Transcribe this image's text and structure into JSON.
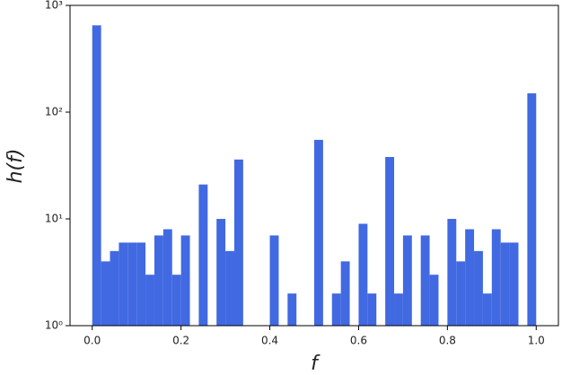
{
  "chart_data": {
    "type": "histogram",
    "xlabel": "f",
    "ylabel": "h(f)",
    "bins": [
      0,
      0.02,
      0.04,
      0.06,
      0.08,
      0.1,
      0.12,
      0.14,
      0.16,
      0.18,
      0.2,
      0.22,
      0.24,
      0.26,
      0.28,
      0.3,
      0.32,
      0.34,
      0.36,
      0.38,
      0.4,
      0.42,
      0.44,
      0.46,
      0.48,
      0.5,
      0.52,
      0.54,
      0.56,
      0.58,
      0.6,
      0.62,
      0.64,
      0.66,
      0.68,
      0.7,
      0.72,
      0.74,
      0.76,
      0.78,
      0.8,
      0.82,
      0.84,
      0.86,
      0.88,
      0.9,
      0.92,
      0.94,
      0.96,
      0.98,
      1
    ],
    "values": [
      650,
      4,
      5,
      6,
      6,
      6,
      3,
      7,
      8,
      3,
      7,
      0,
      21,
      0,
      10,
      5,
      36,
      0,
      0,
      0,
      7,
      0,
      2,
      0,
      0,
      55,
      0,
      2,
      4,
      0,
      9,
      2,
      0,
      38,
      2,
      7,
      0,
      7,
      3,
      0,
      10,
      4,
      8,
      5,
      2,
      8,
      6,
      6,
      0,
      150
    ],
    "color": "#4169e1",
    "xlim": [
      -0.05,
      1.05
    ],
    "xticks": [
      {
        "value": 0,
        "label": "0.0"
      },
      0.2,
      0.4,
      0.6,
      0.8,
      {
        "value": 1,
        "label": "1.0"
      }
    ],
    "ylim": [
      1,
      1000
    ],
    "yscale": "log",
    "yticks": [
      {
        "value": 1,
        "label": "10⁰"
      },
      {
        "value": 10,
        "label": "10¹"
      },
      {
        "value": 100,
        "label": "10²"
      },
      {
        "value": 1000,
        "label": "10³"
      }
    ]
  }
}
